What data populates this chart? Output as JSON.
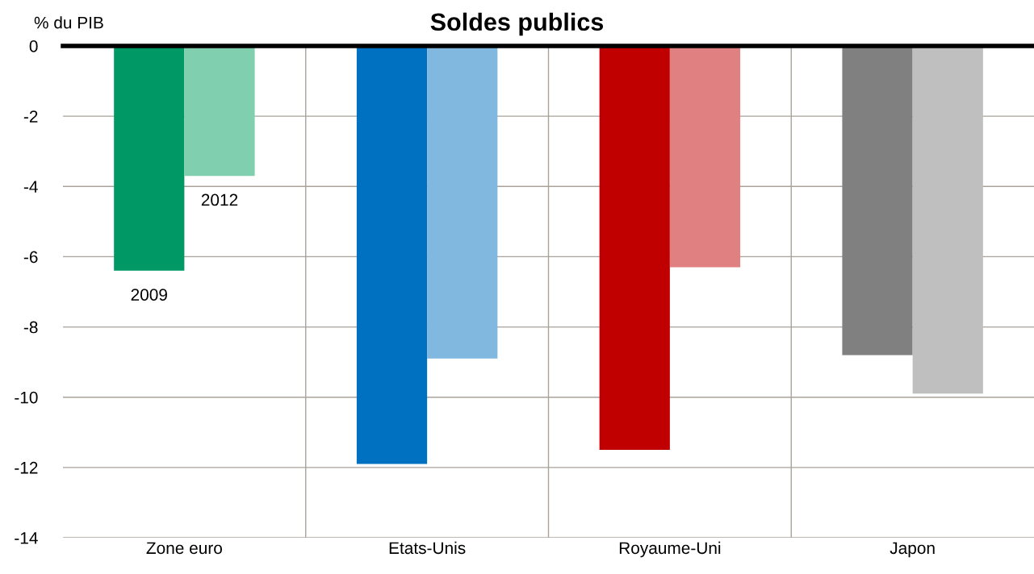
{
  "chart_data": {
    "type": "bar",
    "title": "Soldes publics",
    "ylabel": "% du PIB",
    "categories": [
      "Zone euro",
      "Etats-Unis",
      "Royaume-Uni",
      "Japon"
    ],
    "series": [
      {
        "name": "2009",
        "colors": [
          "#009966",
          "#0070c0",
          "#c00000",
          "#808080"
        ],
        "values": [
          -6.4,
          -11.9,
          -11.5,
          -8.8
        ]
      },
      {
        "name": "2012",
        "colors": [
          "#80cfae",
          "#80b8e0",
          "#e08080",
          "#bfbfbf"
        ],
        "values": [
          -3.7,
          -8.9,
          -6.3,
          -9.9
        ]
      }
    ],
    "ylim": [
      -14,
      0
    ],
    "yticks": [
      -14,
      -12,
      -10,
      -8,
      -6,
      -4,
      -2,
      0
    ],
    "grid": true,
    "legend": false
  }
}
